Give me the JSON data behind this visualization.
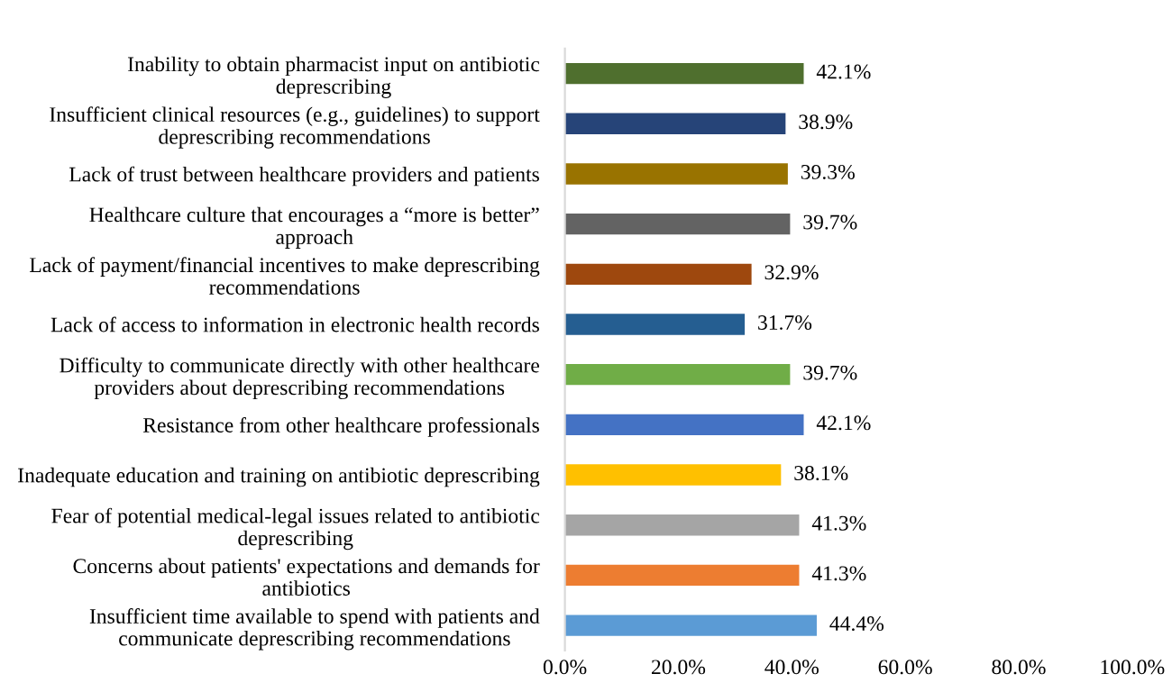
{
  "chart_data": {
    "type": "bar",
    "orientation": "horizontal",
    "categories": [
      "Inability to obtain pharmacist input on antibiotic\ndeprescribing",
      "Insufficient clinical resources (e.g., guidelines) to support\ndeprescribing recommendations",
      "Lack of trust between healthcare providers and patients",
      "Healthcare culture that encourages a “more is better”\napproach",
      "Lack of payment/financial incentives to make deprescribing\nrecommendations",
      "Lack of access to information in electronic health records",
      "Difficulty to communicate directly with other healthcare\nproviders about deprescribing recommendations",
      "Resistance from other healthcare professionals",
      "Inadequate education and training on antibiotic deprescribing",
      "Fear of potential medical-legal issues related to antibiotic\ndeprescribing",
      "Concerns about patients' expectations and demands for\nantibiotics",
      "Insufficient time available to spend with patients and\ncommunicate deprescribing recommendations"
    ],
    "values": [
      42.1,
      38.9,
      39.3,
      39.7,
      32.9,
      31.7,
      39.7,
      42.1,
      38.1,
      41.3,
      41.3,
      44.4
    ],
    "value_labels": [
      "42.1%",
      "38.9%",
      "39.3%",
      "39.7%",
      "32.9%",
      "31.7%",
      "39.7%",
      "42.1%",
      "38.1%",
      "41.3%",
      "41.3%",
      "44.4%"
    ],
    "colors": [
      "#4f6f2e",
      "#264478",
      "#997300",
      "#636363",
      "#9e480e",
      "#255e91",
      "#70ad47",
      "#4472c4",
      "#ffc000",
      "#a5a5a5",
      "#ed7d31",
      "#5b9bd5"
    ],
    "xlim": [
      0,
      100
    ],
    "xticks": [
      {
        "value": 0,
        "label": "0.0%"
      },
      {
        "value": 20,
        "label": "20.0%"
      },
      {
        "value": 40,
        "label": "40.0%"
      },
      {
        "value": 60,
        "label": "60.0%"
      },
      {
        "value": 80,
        "label": "80.0%"
      },
      {
        "value": 100,
        "label": "100.0%"
      }
    ],
    "grid": false,
    "legend": false
  }
}
